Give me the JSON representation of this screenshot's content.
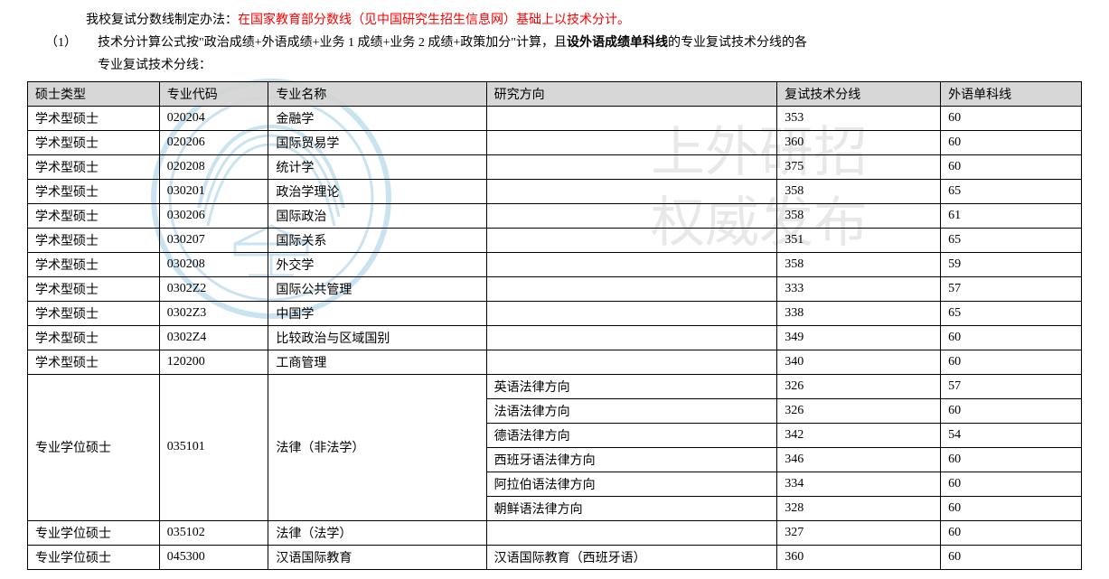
{
  "intro": {
    "line1_pre": "我校复试分数线制定办法：",
    "line1_red": "在国家教育部分数线（见中国研究生招生信息网）基础上以技术分计。",
    "line2_num": "（1）",
    "line2_a": "技术分计算公式按\"政治成绩+外语成绩+业务 1 成绩+业务 2 成绩+政策加分\"计算，且",
    "line2_bold": "设外语成绩单科线",
    "line2_b": "的专业复试技术分线的各",
    "line3": "专业复试技术分线："
  },
  "columns": {
    "c0": "硕士类型",
    "c1": "专业代码",
    "c2": "专业名称",
    "c3": "研究方向",
    "c4": "复试技术分线",
    "c5": "外语单科线"
  },
  "rows": [
    {
      "type": "学术型硕士",
      "code": "020204",
      "name": "金融学",
      "dir": "",
      "score": "353",
      "lang": "60"
    },
    {
      "type": "学术型硕士",
      "code": "020206",
      "name": "国际贸易学",
      "dir": "",
      "score": "360",
      "lang": "60"
    },
    {
      "type": "学术型硕士",
      "code": "020208",
      "name": "统计学",
      "dir": "",
      "score": "375",
      "lang": "60"
    },
    {
      "type": "学术型硕士",
      "code": "030201",
      "name": "政治学理论",
      "dir": "",
      "score": "358",
      "lang": "65"
    },
    {
      "type": "学术型硕士",
      "code": "030206",
      "name": "国际政治",
      "dir": "",
      "score": "358",
      "lang": "61"
    },
    {
      "type": "学术型硕士",
      "code": "030207",
      "name": "国际关系",
      "dir": "",
      "score": "351",
      "lang": "65"
    },
    {
      "type": "学术型硕士",
      "code": "030208",
      "name": "外交学",
      "dir": "",
      "score": "358",
      "lang": "59"
    },
    {
      "type": "学术型硕士",
      "code": "0302Z2",
      "name": "国际公共管理",
      "dir": "",
      "score": "333",
      "lang": "57"
    },
    {
      "type": "学术型硕士",
      "code": "0302Z3",
      "name": "中国学",
      "dir": "",
      "score": "338",
      "lang": "65"
    },
    {
      "type": "学术型硕士",
      "code": "0302Z4",
      "name": "比较政治与区域国别",
      "dir": "",
      "score": "349",
      "lang": "60"
    },
    {
      "type": "学术型硕士",
      "code": "120200",
      "name": "工商管理",
      "dir": "",
      "score": "340",
      "lang": "60"
    }
  ],
  "merged": {
    "type": "专业学位硕士",
    "code": "035101",
    "name": "法律（非法学）",
    "dirs": [
      {
        "dir": "英语法律方向",
        "score": "326",
        "lang": "57"
      },
      {
        "dir": "法语法律方向",
        "score": "326",
        "lang": "60"
      },
      {
        "dir": "德语法律方向",
        "score": "342",
        "lang": "54"
      },
      {
        "dir": "西班牙语法律方向",
        "score": "346",
        "lang": "60"
      },
      {
        "dir": "阿拉伯语法律方向",
        "score": "334",
        "lang": "60"
      },
      {
        "dir": "朝鲜语法律方向",
        "score": "328",
        "lang": "60"
      }
    ]
  },
  "rows2": [
    {
      "type": "专业学位硕士",
      "code": "035102",
      "name": "法律（法学）",
      "dir": "",
      "score": "327",
      "lang": "60"
    },
    {
      "type": "专业学位硕士",
      "code": "045300",
      "name": "汉语国际教育",
      "dir": "汉语国际教育（西班牙语）",
      "score": "360",
      "lang": "60"
    }
  ],
  "watermark2": {
    "l1": "上外研招",
    "l2": "权威发布"
  },
  "style": {
    "header_bg": "#d3d3d3",
    "border_color": "#000000",
    "red_color": "#ff0000",
    "wm_color": "#c9e3f0"
  }
}
